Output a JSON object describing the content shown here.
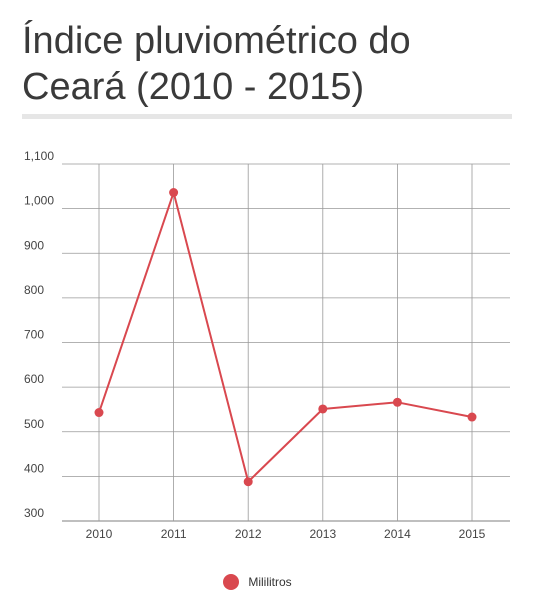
{
  "title": "Índice pluviométrico do\nCeará (2010 - 2015)",
  "colors": {
    "series": "#d9484f",
    "grid": "#999999",
    "divider": "#e6e6e6"
  },
  "chart_data": {
    "type": "line",
    "title": "Índice pluviométrico do Ceará (2010 - 2015)",
    "xlabel": "",
    "ylabel": "",
    "categories": [
      "2010",
      "2011",
      "2012",
      "2013",
      "2014",
      "2015"
    ],
    "series": [
      {
        "name": "Mililitros",
        "values": [
          543,
          1036,
          388,
          551,
          566,
          533
        ]
      }
    ],
    "yticks": [
      "300",
      "400",
      "500",
      "600",
      "700",
      "800",
      "900",
      "1,000",
      "1,100"
    ],
    "ylim": [
      300,
      1100
    ],
    "grid": true,
    "legend": "bottom"
  }
}
